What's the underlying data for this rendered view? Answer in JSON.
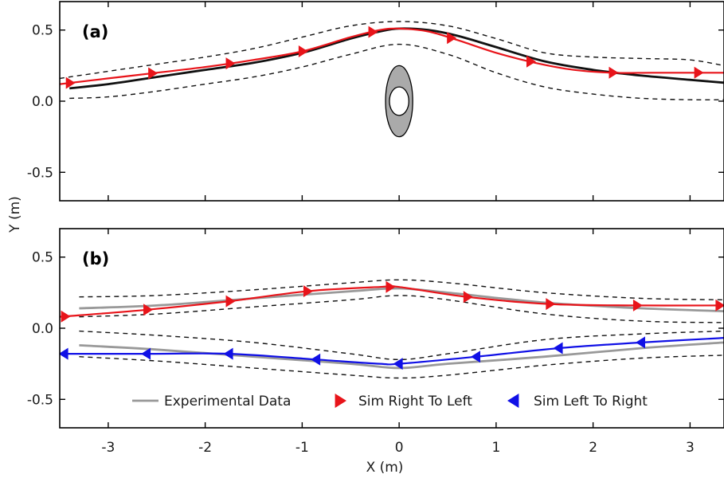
{
  "chart_data": {
    "type": "line",
    "xlabel": "X (m)",
    "ylabel": "Y (m)",
    "xlim": [
      -3.5,
      3.35
    ],
    "x_ticks": [
      "-3",
      "-2",
      "-1",
      "0",
      "1",
      "2",
      "3"
    ],
    "y_ticks": [
      "0.5",
      "0.0",
      "-0.5"
    ],
    "legend": {
      "placement": "bottom-right",
      "entries": [
        {
          "label": "Experimental Data",
          "color": "#999999",
          "marker": "line"
        },
        {
          "label": "Sim Right To Left",
          "color": "#e8141a",
          "marker": "triangle-right"
        },
        {
          "label": "Sim Left To Right",
          "color": "#1010e6",
          "marker": "triangle-left"
        }
      ]
    },
    "colors": {
      "experimental": "#999999",
      "experimental_dark": "#111111",
      "sim_rtl": "#e8141a",
      "sim_ltr": "#1010e6",
      "bounds": "#111111",
      "obstacle_fill": "#aaaaaa"
    },
    "panels": [
      {
        "label": "(a)",
        "ylim": [
          -0.7,
          0.7
        ],
        "obstacle": {
          "cx": 0,
          "cy": 0.0,
          "rx": 0.14,
          "ry": 0.25,
          "inner_rx": 0.1,
          "inner_ry": 0.1
        },
        "series": [
          {
            "role": "experimental",
            "color": "#111111",
            "x": [
              -3.4,
              -3.0,
              -2.5,
              -2.0,
              -1.5,
              -1.0,
              -0.5,
              -0.2,
              0.0,
              0.3,
              0.6,
              1.0,
              1.5,
              2.0,
              2.5,
              3.0,
              3.35
            ],
            "y": [
              0.09,
              0.12,
              0.17,
              0.22,
              0.27,
              0.34,
              0.44,
              0.49,
              0.51,
              0.5,
              0.46,
              0.38,
              0.28,
              0.22,
              0.18,
              0.15,
              0.13
            ]
          },
          {
            "role": "bound",
            "style": "dashed",
            "x": [
              -3.5,
              -3.0,
              -2.5,
              -2.0,
              -1.5,
              -1.0,
              -0.5,
              0.0,
              0.5,
              1.0,
              1.5,
              2.0,
              2.5,
              3.0,
              3.35
            ],
            "y": [
              0.16,
              0.21,
              0.26,
              0.31,
              0.37,
              0.45,
              0.53,
              0.56,
              0.53,
              0.44,
              0.34,
              0.31,
              0.3,
              0.29,
              0.25
            ]
          },
          {
            "role": "bound",
            "style": "dashed",
            "x": [
              -3.4,
              -3.0,
              -2.5,
              -2.0,
              -1.5,
              -1.0,
              -0.5,
              0.0,
              0.5,
              1.0,
              1.5,
              2.0,
              2.5,
              3.0,
              3.35
            ],
            "y": [
              0.02,
              0.03,
              0.07,
              0.12,
              0.17,
              0.24,
              0.33,
              0.4,
              0.33,
              0.2,
              0.1,
              0.05,
              0.02,
              0.01,
              0.01
            ]
          },
          {
            "role": "sim",
            "name": "Sim Right To Left",
            "color": "#e8141a",
            "marker": "triangle-right",
            "x": [
              -3.5,
              -3.0,
              -2.5,
              -2.0,
              -1.5,
              -1.0,
              -0.5,
              -0.2,
              0.0,
              0.3,
              0.6,
              1.0,
              1.4,
              1.8,
              2.2,
              2.6,
              3.0,
              3.35
            ],
            "y": [
              0.12,
              0.16,
              0.2,
              0.24,
              0.29,
              0.35,
              0.45,
              0.5,
              0.51,
              0.49,
              0.43,
              0.34,
              0.27,
              0.22,
              0.2,
              0.2,
              0.2,
              0.2
            ],
            "markers_x": [
              -3.4,
              -2.55,
              -1.75,
              -1.0,
              -0.28,
              0.53,
              1.35,
              2.2,
              3.08
            ]
          }
        ]
      },
      {
        "label": "(b)",
        "ylim": [
          -0.7,
          0.7
        ],
        "series": [
          {
            "role": "experimental",
            "color": "#999999",
            "x": [
              -3.3,
              -2.5,
              -1.5,
              -0.5,
              0.0,
              0.5,
              1.5,
              2.5,
              3.35
            ],
            "y": [
              0.14,
              0.16,
              0.21,
              0.26,
              0.28,
              0.25,
              0.18,
              0.14,
              0.12
            ]
          },
          {
            "role": "experimental",
            "color": "#999999",
            "x": [
              -3.3,
              -2.5,
              -1.5,
              -0.5,
              0.0,
              0.5,
              1.5,
              2.5,
              3.35
            ],
            "y": [
              -0.12,
              -0.15,
              -0.2,
              -0.25,
              -0.28,
              -0.25,
              -0.2,
              -0.14,
              -0.1
            ]
          },
          {
            "role": "bound",
            "style": "dashed",
            "x": [
              -3.3,
              -2.5,
              -1.5,
              -0.5,
              0.0,
              0.5,
              1.5,
              2.5,
              3.35
            ],
            "y": [
              0.22,
              0.23,
              0.27,
              0.32,
              0.34,
              0.32,
              0.25,
              0.21,
              0.2
            ]
          },
          {
            "role": "bound",
            "style": "dashed",
            "x": [
              -3.3,
              -2.5,
              -1.5,
              -0.5,
              0.0,
              0.5,
              1.5,
              2.5,
              3.35
            ],
            "y": [
              0.08,
              0.1,
              0.15,
              0.2,
              0.23,
              0.2,
              0.1,
              0.05,
              0.04
            ]
          },
          {
            "role": "bound",
            "style": "dashed",
            "x": [
              -3.3,
              -2.5,
              -1.5,
              -0.5,
              0.0,
              0.5,
              1.5,
              2.5,
              3.35
            ],
            "y": [
              -0.02,
              -0.05,
              -0.1,
              -0.18,
              -0.22,
              -0.18,
              -0.08,
              -0.04,
              -0.02
            ]
          },
          {
            "role": "bound",
            "style": "dashed",
            "x": [
              -3.3,
              -2.5,
              -1.5,
              -0.5,
              0.0,
              0.5,
              1.5,
              2.5,
              3.35
            ],
            "y": [
              -0.2,
              -0.23,
              -0.28,
              -0.33,
              -0.35,
              -0.33,
              -0.26,
              -0.21,
              -0.19
            ]
          },
          {
            "role": "sim",
            "name": "Sim Right To Left",
            "color": "#e8141a",
            "marker": "triangle-right",
            "x": [
              -3.5,
              -2.6,
              -1.75,
              -0.95,
              -0.2,
              0.0,
              0.7,
              1.55,
              2.45,
              3.3,
              3.5
            ],
            "y": [
              0.08,
              0.13,
              0.19,
              0.26,
              0.29,
              0.29,
              0.22,
              0.17,
              0.16,
              0.16,
              0.16
            ],
            "markers_x": [
              -3.45,
              -2.6,
              -1.75,
              -0.95,
              -0.1,
              0.7,
              1.55,
              2.45,
              3.3
            ]
          },
          {
            "role": "sim",
            "name": "Sim Left To Right",
            "color": "#1010e6",
            "marker": "triangle-left",
            "x": [
              -3.5,
              -2.6,
              -1.75,
              -0.85,
              -0.2,
              0.0,
              0.8,
              1.65,
              2.5,
              3.3,
              3.5
            ],
            "y": [
              -0.18,
              -0.18,
              -0.18,
              -0.22,
              -0.25,
              -0.25,
              -0.2,
              -0.14,
              -0.1,
              -0.07,
              -0.06
            ],
            "markers_x": [
              -3.45,
              -2.6,
              -1.75,
              -0.85,
              0.0,
              0.8,
              1.65,
              2.5,
              3.45
            ]
          }
        ]
      }
    ]
  }
}
